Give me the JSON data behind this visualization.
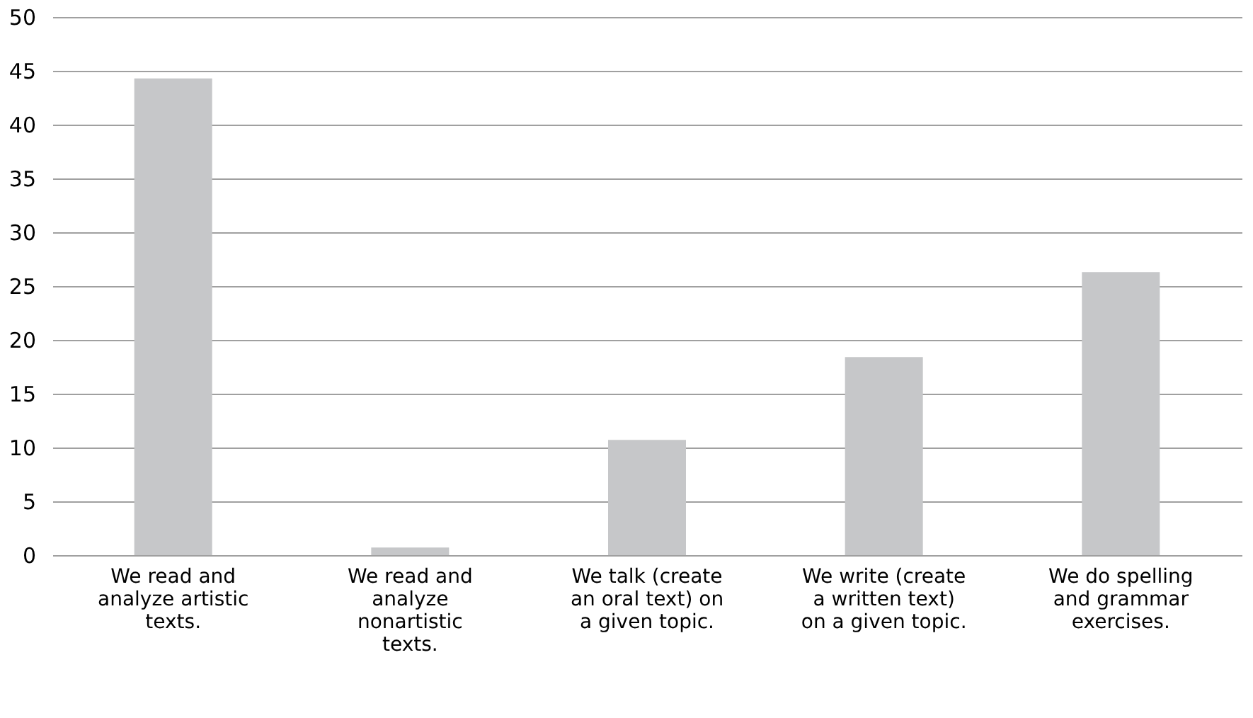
{
  "chart_data": {
    "type": "bar",
    "categories": [
      "We read and analyze artistic texts.",
      "We read and analyze nonartistic texts.",
      "We talk (create an oral text) on a given topic.",
      "We write (create a written text) on a given topic.",
      "We do spelling and grammar exercises."
    ],
    "values": [
      44.3,
      0.7,
      10.7,
      18.4,
      26.3
    ],
    "color": "#c6c7c9",
    "ylim": [
      0,
      50
    ],
    "yticks": [
      0,
      5,
      10,
      15,
      20,
      25,
      30,
      35,
      40,
      45,
      50
    ],
    "grid": "y"
  }
}
